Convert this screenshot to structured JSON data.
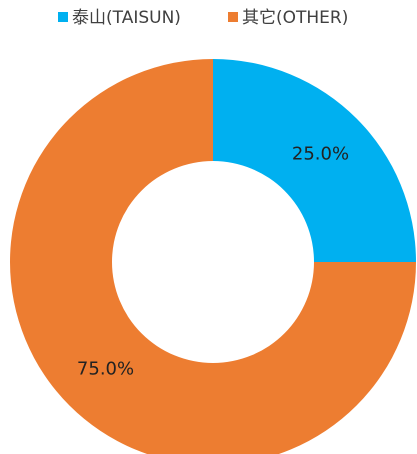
{
  "chart_data": {
    "type": "donut",
    "categories": [
      "泰山(TAISUN)",
      "其它(OTHER)"
    ],
    "values": [
      25,
      75
    ],
    "value_labels": [
      "25.0%",
      "75.0%"
    ],
    "colors": [
      "#00b0f0",
      "#ed7d31"
    ],
    "legend": "top"
  }
}
